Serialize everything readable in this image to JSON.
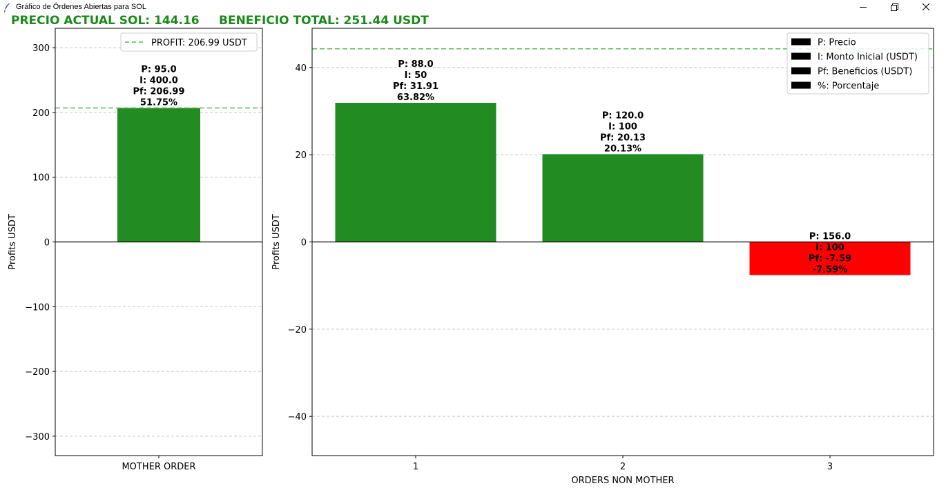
{
  "window": {
    "title": "Gráfico de Órdenes Abiertas para SOL",
    "icon": "feather-icon",
    "controls": [
      "minimize-icon",
      "restore-icon",
      "close-icon"
    ]
  },
  "header": {
    "price_label": "PRECIO ACTUAL SOL: 144.16",
    "total_label": "BENEFICIO TOTAL: 251.44 USDT",
    "color": "#1a8a1a"
  },
  "colors": {
    "positive": "#228b22",
    "negative": "#ff0000",
    "profit_line": "#5cb85c",
    "grid": "#c8c8c8"
  },
  "chart_data": [
    {
      "type": "bar",
      "categories": [
        "MOTHER ORDER"
      ],
      "values": [
        206.99
      ],
      "ylabel": "Profits USDT",
      "xlabel": "",
      "ylim": [
        -330,
        330
      ],
      "yticks": [
        -300,
        -200,
        -100,
        0,
        100,
        200,
        300
      ],
      "grid": true,
      "hline": 206.99,
      "legend": {
        "placement": "top-right",
        "entries": [
          "PROFIT: 206.99 USDT"
        ]
      },
      "annotations": [
        [
          "P: 95.0",
          "I: 400.0",
          "Pf: 206.99",
          "51.75%"
        ]
      ]
    },
    {
      "type": "bar",
      "categories": [
        "1",
        "2",
        "3"
      ],
      "values": [
        31.91,
        20.13,
        -7.59
      ],
      "ylabel": "Profits USDT",
      "xlabel": "ORDERS NON MOTHER",
      "ylim": [
        -49,
        49
      ],
      "yticks": [
        -40,
        -20,
        0,
        20,
        40
      ],
      "grid": true,
      "hline": 44.3,
      "legend": {
        "placement": "top-right",
        "entries": [
          "P: Precio",
          "I: Monto Inicial (USDT)",
          "Pf: Beneficios (USDT)",
          "%: Porcentaje"
        ]
      },
      "annotations": [
        [
          "P: 88.0",
          "I: 50",
          "Pf: 31.91",
          "63.82%"
        ],
        [
          "P: 120.0",
          "I: 100",
          "Pf: 20.13",
          "20.13%"
        ],
        [
          "P: 156.0",
          "I: 100",
          "Pf: -7.59",
          "-7.59%"
        ]
      ]
    }
  ]
}
